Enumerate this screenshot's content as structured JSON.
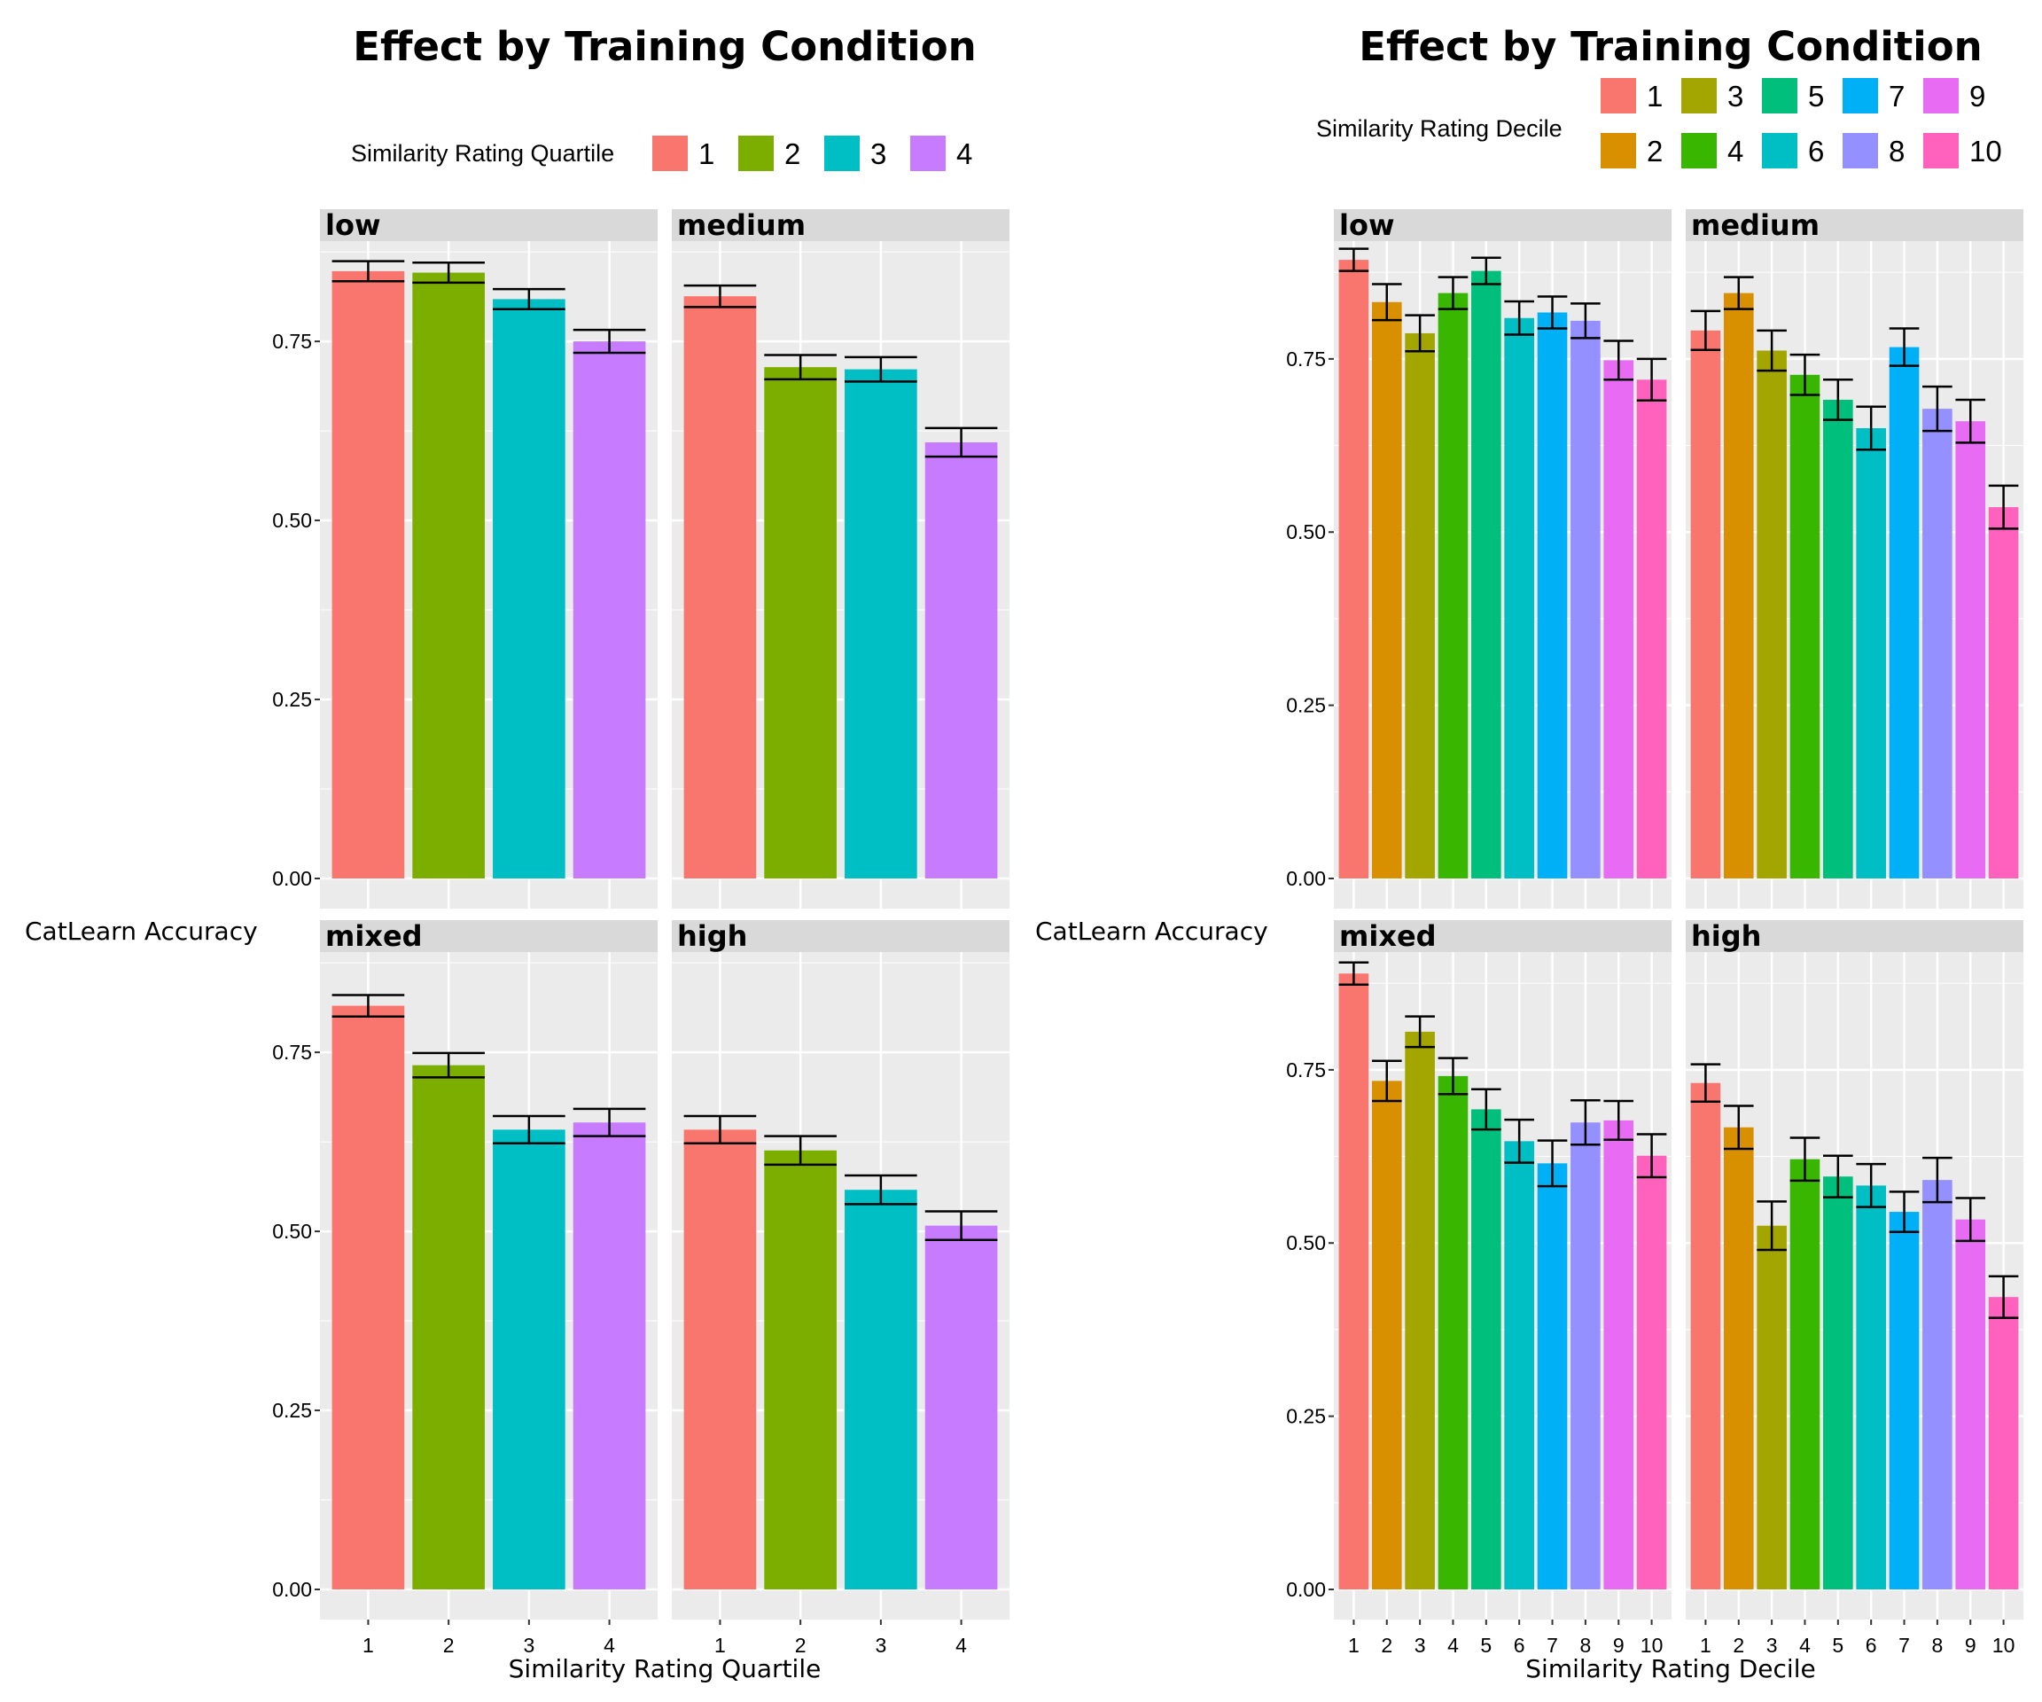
{
  "chart_data": [
    {
      "type": "bar",
      "title": "Effect by Training Condition",
      "xlabel": "Similarity Rating Quartile",
      "ylabel": "CatLearn Accuracy",
      "legend_title": "Similarity Rating Quartile",
      "legend_position": "top",
      "categories": [
        "1",
        "2",
        "3",
        "4"
      ],
      "colors": [
        "#F8766D",
        "#7CAE00",
        "#00BFC4",
        "#C77CFF"
      ],
      "ylim": [
        0,
        0.89
      ],
      "yticks": [
        0,
        0.25,
        0.5,
        0.75
      ],
      "ytick_labels": [
        "0.00",
        "0.25",
        "0.50",
        "0.75"
      ],
      "error_bars": true,
      "grid": true,
      "facets": [
        {
          "label": "low",
          "values": [
            0.848,
            0.846,
            0.809,
            0.75
          ],
          "err": [
            0.014,
            0.014,
            0.014,
            0.016
          ]
        },
        {
          "label": "medium",
          "values": [
            0.813,
            0.714,
            0.711,
            0.609
          ],
          "err": [
            0.015,
            0.017,
            0.017,
            0.02
          ]
        },
        {
          "label": "mixed",
          "values": [
            0.815,
            0.732,
            0.642,
            0.652
          ],
          "err": [
            0.015,
            0.017,
            0.019,
            0.019
          ]
        },
        {
          "label": "high",
          "values": [
            0.642,
            0.613,
            0.558,
            0.508
          ],
          "err": [
            0.019,
            0.02,
            0.02,
            0.02
          ]
        }
      ]
    },
    {
      "type": "bar",
      "title": "Effect by Training Condition",
      "xlabel": "Similarity Rating Decile",
      "ylabel": "CatLearn Accuracy",
      "legend_title": "Similarity Rating Decile",
      "legend_position": "top",
      "categories": [
        "1",
        "2",
        "3",
        "4",
        "5",
        "6",
        "7",
        "8",
        "9",
        "10"
      ],
      "colors": [
        "#F8766D",
        "#D89000",
        "#A3A500",
        "#39B600",
        "#00BF7D",
        "#00BFC4",
        "#00B0F6",
        "#9590FF",
        "#E76BF3",
        "#FF62BC"
      ],
      "ylim": [
        0,
        0.92
      ],
      "yticks": [
        0,
        0.25,
        0.5,
        0.75
      ],
      "ytick_labels": [
        "0.00",
        "0.25",
        "0.50",
        "0.75"
      ],
      "error_bars": true,
      "grid": true,
      "facets": [
        {
          "label": "low",
          "values": [
            0.893,
            0.832,
            0.787,
            0.845,
            0.877,
            0.809,
            0.817,
            0.805,
            0.748,
            0.72
          ],
          "err": [
            0.016,
            0.026,
            0.026,
            0.023,
            0.019,
            0.024,
            0.023,
            0.025,
            0.028,
            0.03
          ]
        },
        {
          "label": "medium",
          "values": [
            0.791,
            0.845,
            0.762,
            0.727,
            0.691,
            0.65,
            0.767,
            0.678,
            0.66,
            0.536
          ],
          "err": [
            0.028,
            0.023,
            0.029,
            0.029,
            0.029,
            0.031,
            0.027,
            0.032,
            0.031,
            0.031
          ]
        },
        {
          "label": "mixed",
          "values": [
            0.889,
            0.734,
            0.805,
            0.741,
            0.693,
            0.647,
            0.615,
            0.674,
            0.677,
            0.626
          ],
          "err": [
            0.016,
            0.029,
            0.022,
            0.026,
            0.029,
            0.031,
            0.033,
            0.032,
            0.028,
            0.031
          ]
        },
        {
          "label": "high",
          "values": [
            0.731,
            0.667,
            0.525,
            0.621,
            0.596,
            0.583,
            0.545,
            0.591,
            0.534,
            0.422
          ],
          "err": [
            0.027,
            0.031,
            0.035,
            0.031,
            0.03,
            0.031,
            0.029,
            0.032,
            0.031,
            0.03
          ]
        }
      ]
    }
  ]
}
